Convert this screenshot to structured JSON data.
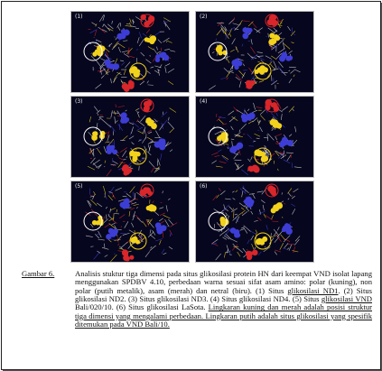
{
  "figure": {
    "panels": [
      {
        "label": "(1)",
        "highlight": "ND1"
      },
      {
        "label": "(2)",
        "highlight": "ND2"
      },
      {
        "label": "(3)",
        "highlight": "ND3"
      },
      {
        "label": "(4)",
        "highlight": "ND4"
      },
      {
        "label": "(5)",
        "highlight": "VND Bali/020/10"
      },
      {
        "label": "(6)",
        "highlight": "LaSota"
      }
    ],
    "colors": {
      "background": "#06061e",
      "polar": "#f2d21b",
      "non_polar": "#d8d8d8",
      "acidic": "#d9262a",
      "neutral": "#3d3dd6"
    }
  },
  "caption": {
    "label": "Gambar 6.",
    "p1": "Analisis stuktur tiga dimensi pada situs glikosilasi protein HN dari keempat VND isolat lapang menggunakan SPDBV 4.10, perbedaan warna sesuai sifat asam amino: polar (kuning), non polar (putih metalik), asam (merah) dan netral (biru). (1) Situs ",
    "u1": "glikosilasi  ND1",
    "p2": ". (2) Situs glikosilasi ND2. (3) Situs glikosilasi ND3. (4) Situs glikosilasi ND4. (5) Situs ",
    "u2": "glikosilasi  VND",
    "p3": " Bali/020/10. (6) Situs glikosilasi LaSota. ",
    "u3": "Lingkaran kuning dan merah adalah posisi struktur tiga dimensi yang mengalami perbedaan. Lingkaran putih adalah situs glikosilasi yang spesifik ditemukan pada VND Bali/10."
  }
}
